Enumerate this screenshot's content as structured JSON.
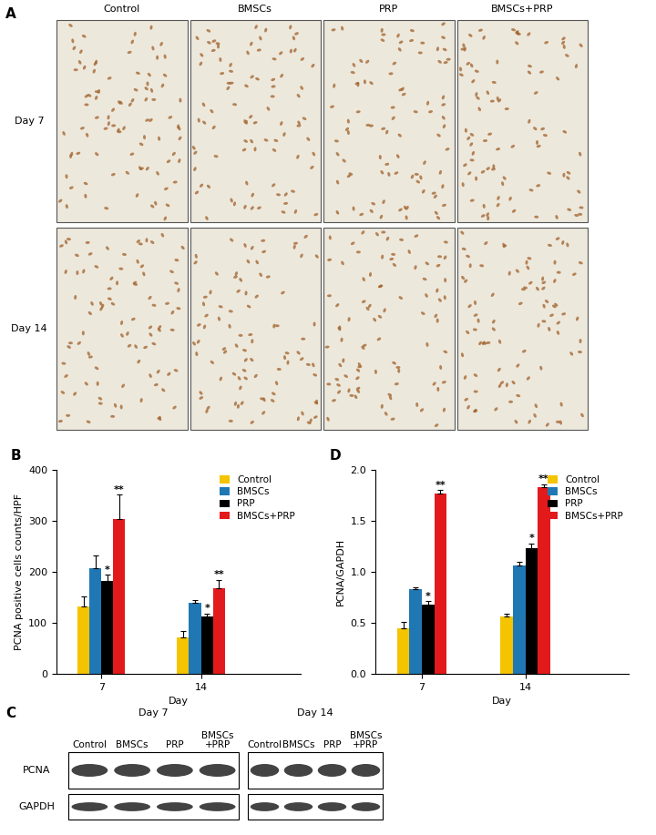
{
  "image_panel": {
    "panel": "A",
    "columns": [
      "Control",
      "BMSCs",
      "PRP",
      "BMSCs+PRP"
    ],
    "rows": [
      "Day 7",
      "Day 14"
    ]
  },
  "chart_data": [
    {
      "type": "bar",
      "panel": "B",
      "categories": [
        "7",
        "14"
      ],
      "x_label": "Day",
      "y_label": "PCNA positive cells counts/HPF",
      "ylim": [
        0,
        400
      ],
      "yticks": [
        0,
        100,
        200,
        300,
        400
      ],
      "legend": "upper right",
      "series": [
        {
          "name": "Control",
          "color": "#f5c400",
          "values": [
            133,
            72
          ],
          "errors": [
            18,
            12
          ]
        },
        {
          "name": "BMSCs",
          "color": "#1f78b4",
          "values": [
            207,
            140
          ],
          "errors": [
            25,
            5
          ]
        },
        {
          "name": "PRP",
          "color": "#000000",
          "values": [
            182,
            113
          ],
          "errors": [
            12,
            5
          ],
          "significance": [
            "*",
            "*"
          ]
        },
        {
          "name": "BMSCs+PRP",
          "color": "#e31a1c",
          "values": [
            303,
            167
          ],
          "errors": [
            48,
            17
          ],
          "significance": [
            "**",
            "**"
          ]
        }
      ]
    },
    {
      "type": "bar",
      "panel": "D",
      "categories": [
        "7",
        "14"
      ],
      "x_label": "Day",
      "y_label": "PCNA/GAPDH",
      "ylim": [
        0,
        2.0
      ],
      "yticks": [
        {
          "value": 0,
          "label": "0.0"
        },
        {
          "value": 0.5,
          "label": "0.5"
        },
        {
          "value": 1.0,
          "label": "1.0"
        },
        {
          "value": 1.5,
          "label": "1.5"
        },
        {
          "value": 2.0,
          "label": "2.0"
        }
      ],
      "legend": "upper right",
      "series": [
        {
          "name": "Control",
          "color": "#f5c400",
          "values": [
            0.45,
            0.56
          ],
          "errors": [
            0.06,
            0.03
          ]
        },
        {
          "name": "BMSCs",
          "color": "#1f78b4",
          "values": [
            0.83,
            1.06
          ],
          "errors": [
            0.02,
            0.04
          ]
        },
        {
          "name": "PRP",
          "color": "#000000",
          "values": [
            0.68,
            1.23
          ],
          "errors": [
            0.03,
            0.05
          ],
          "significance": [
            "*",
            "*"
          ]
        },
        {
          "name": "BMSCs+PRP",
          "color": "#e31a1c",
          "values": [
            1.77,
            1.83
          ],
          "errors": [
            0.03,
            0.03
          ],
          "significance": [
            "**",
            "**"
          ]
        }
      ]
    }
  ],
  "blot_panel": {
    "panel": "C",
    "groups": [
      "Day 7",
      "Day 14"
    ],
    "lanes": [
      "Control",
      "BMSCs",
      "PRP",
      "BMSCs\n+PRP"
    ],
    "rows": [
      "PCNA",
      "GAPDH"
    ]
  }
}
